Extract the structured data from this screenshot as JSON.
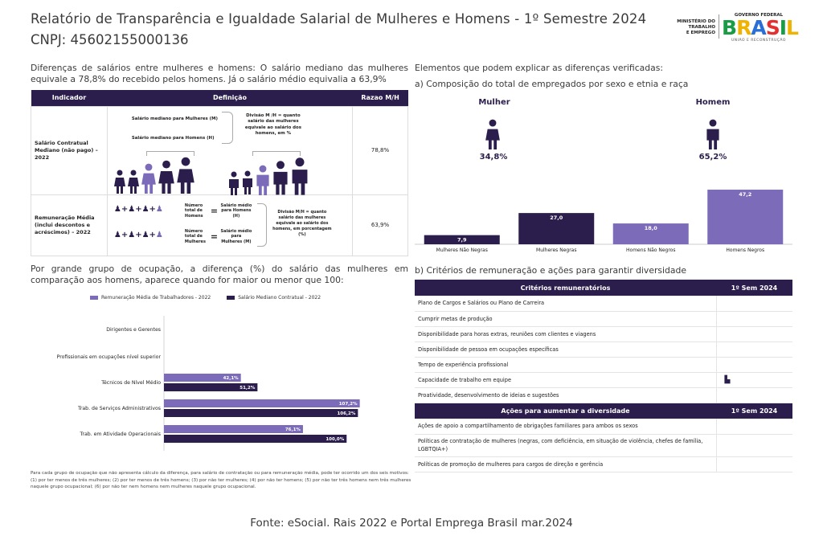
{
  "header": {
    "title": "Relatório de Transparência e Igualdade Salarial de Mulheres e Homens - 1º Semestre 2024",
    "cnpj": "CNPJ: 45602155000136",
    "ministry_lines": [
      "MINISTÉRIO DO",
      "TRABALHO",
      "E EMPREGO"
    ],
    "gov_top": "GOVERNO FEDERAL",
    "gov_brand": "BRASIL",
    "gov_bottom": "UNIÃO E RECONSTRUÇÃO"
  },
  "intro": "Diferenças de salários entre mulheres e homens: O salário mediano das mulheres equivale a 78,8% do recebido pelos homens. Já o salário médio equivalia a 63,9%",
  "indicator_table": {
    "headers": [
      "Indicador",
      "Definição",
      "Razao M/H"
    ],
    "row1": {
      "indicator": "Salário Contratual Mediano (não pago) – 2022",
      "label_women": "Salário mediano para Mulheres (M)",
      "label_men": "Salário mediano para Homens (H)",
      "division": "Divisão M /H = quanto salário das mulheres equivale ao salário dos homens, em %",
      "ratio": "78,8%"
    },
    "row2": {
      "indicator": "Remuneração Média (inclui descontos e acréscimos) – 2022",
      "total_men": "Número total de Homens",
      "avg_men": "Salário médio para Homens (H)",
      "total_women": "Número total de Mulheres",
      "avg_women": "Salário médio para Mulheres (M)",
      "division": "Divisão M/H = quanto salário das mulheres equivale ao salário dos homens, em porcentagem (%)",
      "ratio": "63,9%"
    }
  },
  "occupation_section": {
    "text": "Por grande grupo de ocupação, a diferença (%) do salário das mulheres em comparação aos homens, aparece quando for maior ou menor que 100:",
    "footnote": "Para cada grupo de ocupação que não apresenta cálculo da diferença, para salário de contratação ou para remuneração média, pode ter ocorrido um dos seis motivos: (1) por ter menos de três mulheres; (2) por ter menos de três homens; (3) por não ter mulheres; (4) por não ter homens; (5) por não ter três homens nem três mulheres naquele grupo ocupacional; (6) por não ter nem homens nem mulheres naquele grupo ocupacional."
  },
  "occupation_chart": {
    "legend": [
      "Remuneração Média de Trabalhadores - 2022",
      "Salário Mediano Contratual - 2022"
    ],
    "colors": [
      "#7b6bb8",
      "#2b1e4d"
    ],
    "groups": [
      {
        "label": "Dirigentes e Gerentes",
        "avg": null,
        "median": null,
        "avg_label": "",
        "median_label": ""
      },
      {
        "label": "Profissionais em ocupações nível superior",
        "avg": null,
        "median": null,
        "avg_label": "",
        "median_label": ""
      },
      {
        "label": "Técnicos de Nível Médio",
        "avg": 42.1,
        "median": 51.2,
        "avg_label": "42,1%",
        "median_label": "51,2%"
      },
      {
        "label": "Trab. de Serviços Administrativos",
        "avg": 107.2,
        "median": 106.2,
        "avg_label": "107,2%",
        "median_label": "106,2%"
      },
      {
        "label": "Trab. em Atividade Operacionais",
        "avg": 76.1,
        "median": 100.0,
        "avg_label": "76,1%",
        "median_label": "100,0%"
      }
    ]
  },
  "composition": {
    "heading": "Elementos que podem explicar as diferenças verificadas:",
    "subtitle": "a) Composição do total de empregados por sexo e etnia e raça",
    "woman_label": "Mulher",
    "woman_pct": "34,8%",
    "man_label": "Homem",
    "man_pct": "65,2%"
  },
  "chart_data": {
    "type": "bar",
    "title": "a) Composição do total de empregados por sexo e etnia e raça",
    "categories": [
      "Mulheres Não Negras",
      "Mulheres Negras",
      "Homens Não Negros",
      "Homens Negros"
    ],
    "values": [
      7.9,
      27.0,
      18.0,
      47.2
    ],
    "value_labels": [
      "7,9",
      "27,0",
      "18,0",
      "47,2"
    ],
    "colors": [
      "#2b1e4d",
      "#2b1e4d",
      "#7b6bb8",
      "#7b6bb8"
    ],
    "ylim": [
      0,
      50
    ]
  },
  "criteria": {
    "subtitle": "b) Critérios de remuneração e ações para garantir diversidade",
    "header1": "Critérios remuneratórios",
    "col_header": "1º Sem 2024",
    "items1": [
      "Plano de Cargos e Salários ou Plano de Carreira",
      "Cumprir metas de produção",
      "Disponibilidade para horas extras, reuniões com clientes e viagens",
      "Disponibilidade de pessoa em ocupações específicas",
      "Tempo de experiência profissional",
      "Capacidade de trabalho em equipe",
      "Proatividade, desenvolvimento de ideias e sugestões"
    ],
    "header2": "Ações para aumentar a diversidade",
    "items2": [
      "Ações de apoio a compartilhamento de obrigações familiares para ambos os sexos",
      "Políticas de contratação de mulheres (negras, com deficiência, em situação de violência, chefes de família, LGBTQIA+)",
      "Políticas de promoção de mulheres para cargos de direção e gerência"
    ]
  },
  "footer": "Fonte: eSocial. Rais 2022 e Portal Emprega Brasil mar.2024"
}
